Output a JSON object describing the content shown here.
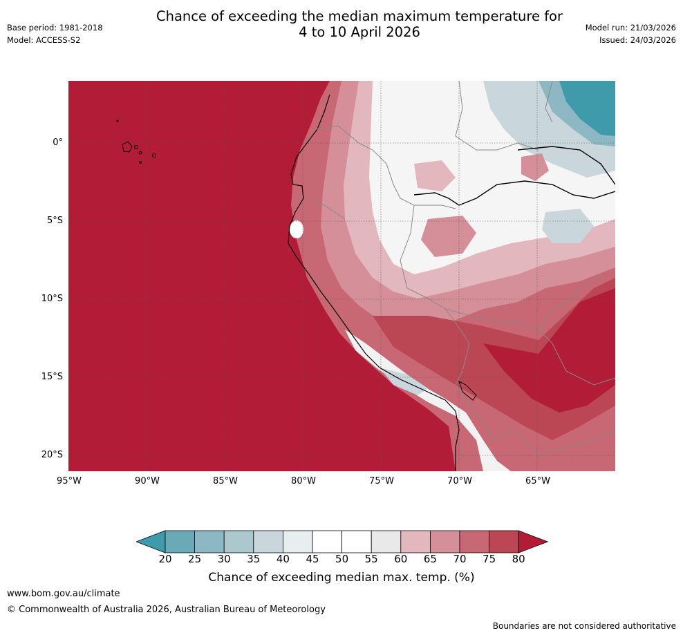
{
  "header": {
    "base_period": "Base period: 1981-2018",
    "model": "Model: ACCESS-S2",
    "title_line1": "Chance of exceeding the median maximum temperature for",
    "title_line2": "4 to 10 April 2026",
    "model_run": "Model run: 21/03/2026",
    "issued": "Issued: 24/03/2026"
  },
  "map": {
    "lat_ticks": [
      "0°",
      "5°S",
      "10°S",
      "15°S",
      "20°S"
    ],
    "lon_ticks": [
      "95°W",
      "90°W",
      "85°W",
      "80°W",
      "75°W",
      "70°W",
      "65°W"
    ],
    "ocean_color": "#b21c37"
  },
  "colorbar": {
    "ticks": [
      "20",
      "25",
      "30",
      "35",
      "40",
      "45",
      "50",
      "55",
      "60",
      "65",
      "70",
      "75",
      "80"
    ],
    "colors": [
      "#3f9aaa",
      "#6aaab7",
      "#8db8c3",
      "#abc8cf",
      "#c9d7dc",
      "#e8eef0",
      "#ffffff",
      "#ffffff",
      "#e9e9e9",
      "#e2b8be",
      "#d58f98",
      "#c86874",
      "#bb4654",
      "#b21c37"
    ],
    "label": "Chance of exceeding median max. temp. (%)"
  },
  "footer": {
    "url": "www.bom.gov.au/climate",
    "copyright": "© Commonwealth of Australia 2026, Australian Bureau of Meteorology",
    "note": "Boundaries are not considered authoritative"
  }
}
